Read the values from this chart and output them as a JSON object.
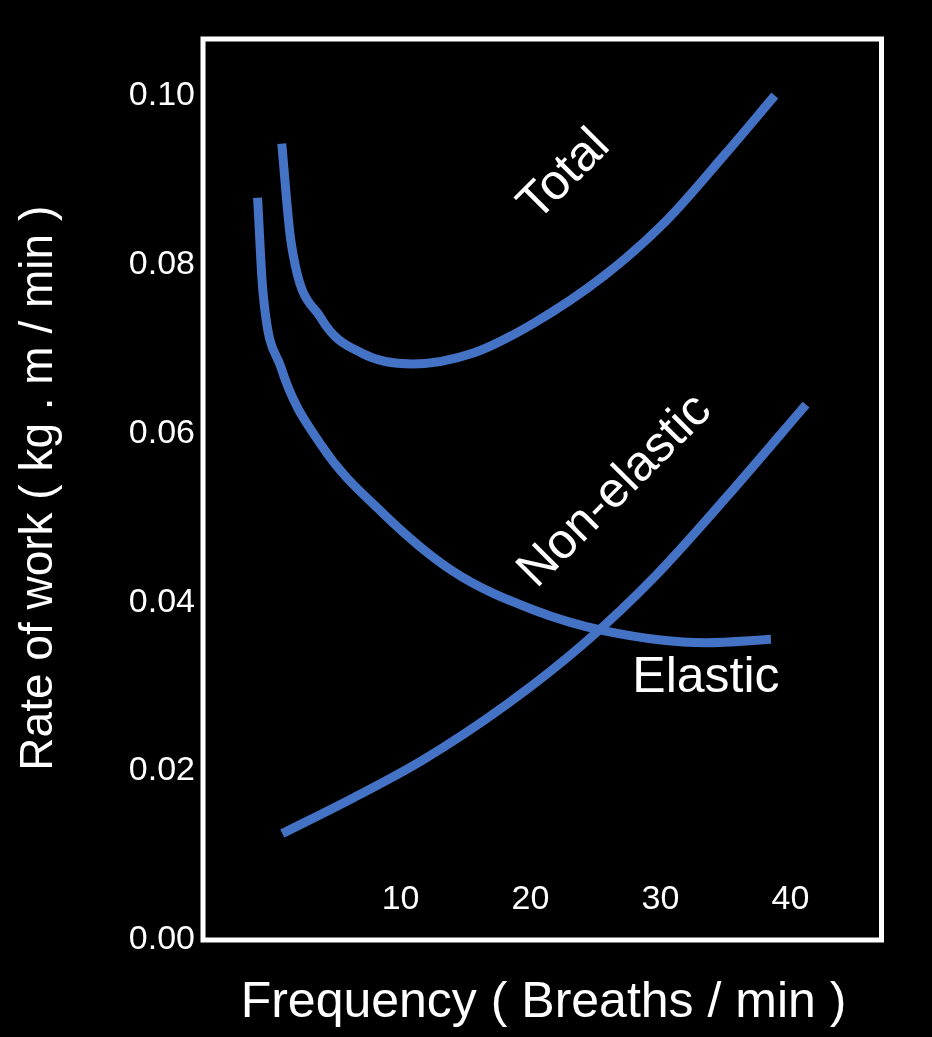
{
  "chart_data": {
    "type": "line",
    "xlabel": "Frequency ( Breaths / min )",
    "ylabel": "Rate of work ( kg . m / min )",
    "xlim": [
      -5.2,
      47.2
    ],
    "xticks": [
      10,
      20,
      30,
      40
    ],
    "ylim": [
      0,
      0.107
    ],
    "yticks": [
      {
        "value": 0,
        "label": "0.00"
      },
      {
        "value": 0.02,
        "label": "0.02"
      },
      {
        "value": 0.04,
        "label": "0.04"
      },
      {
        "value": 0.06,
        "label": "0.06"
      },
      {
        "value": 0.08,
        "label": "0.08"
      },
      {
        "value": 0.1,
        "label": "0.10"
      }
    ],
    "grid": false,
    "legend": false,
    "marker": "none",
    "line_style": "solid",
    "series": [
      {
        "name": "Total",
        "color": "#4472c4",
        "x": [
          0.86,
          1.56,
          3.9,
          7.0,
          10.9,
          15.6,
          20.2,
          25.7,
          30.4,
          35.0,
          38.8
        ],
        "values": [
          0.0943,
          0.0828,
          0.0736,
          0.0695,
          0.0682,
          0.0695,
          0.073,
          0.0787,
          0.0851,
          0.0931,
          0.1
        ]
      },
      {
        "name": "Non-elastic",
        "color": "#4472c4",
        "x": [
          0.9,
          6.2,
          11.7,
          17.9,
          24.1,
          29.6,
          35.0,
          41.2
        ],
        "values": [
          0.0126,
          0.0167,
          0.0213,
          0.0276,
          0.0351,
          0.0431,
          0.0523,
          0.0634
        ]
      },
      {
        "name": "Elastic",
        "color": "#4472c4",
        "x": [
          -1.0,
          -0.6,
          0.8,
          3.9,
          8.6,
          14.0,
          20.2,
          25.7,
          33.5,
          38.5
        ],
        "values": [
          0.0879,
          0.077,
          0.0678,
          0.0586,
          0.0506,
          0.0437,
          0.0391,
          0.0366,
          0.0352,
          0.0356
        ]
      }
    ]
  }
}
